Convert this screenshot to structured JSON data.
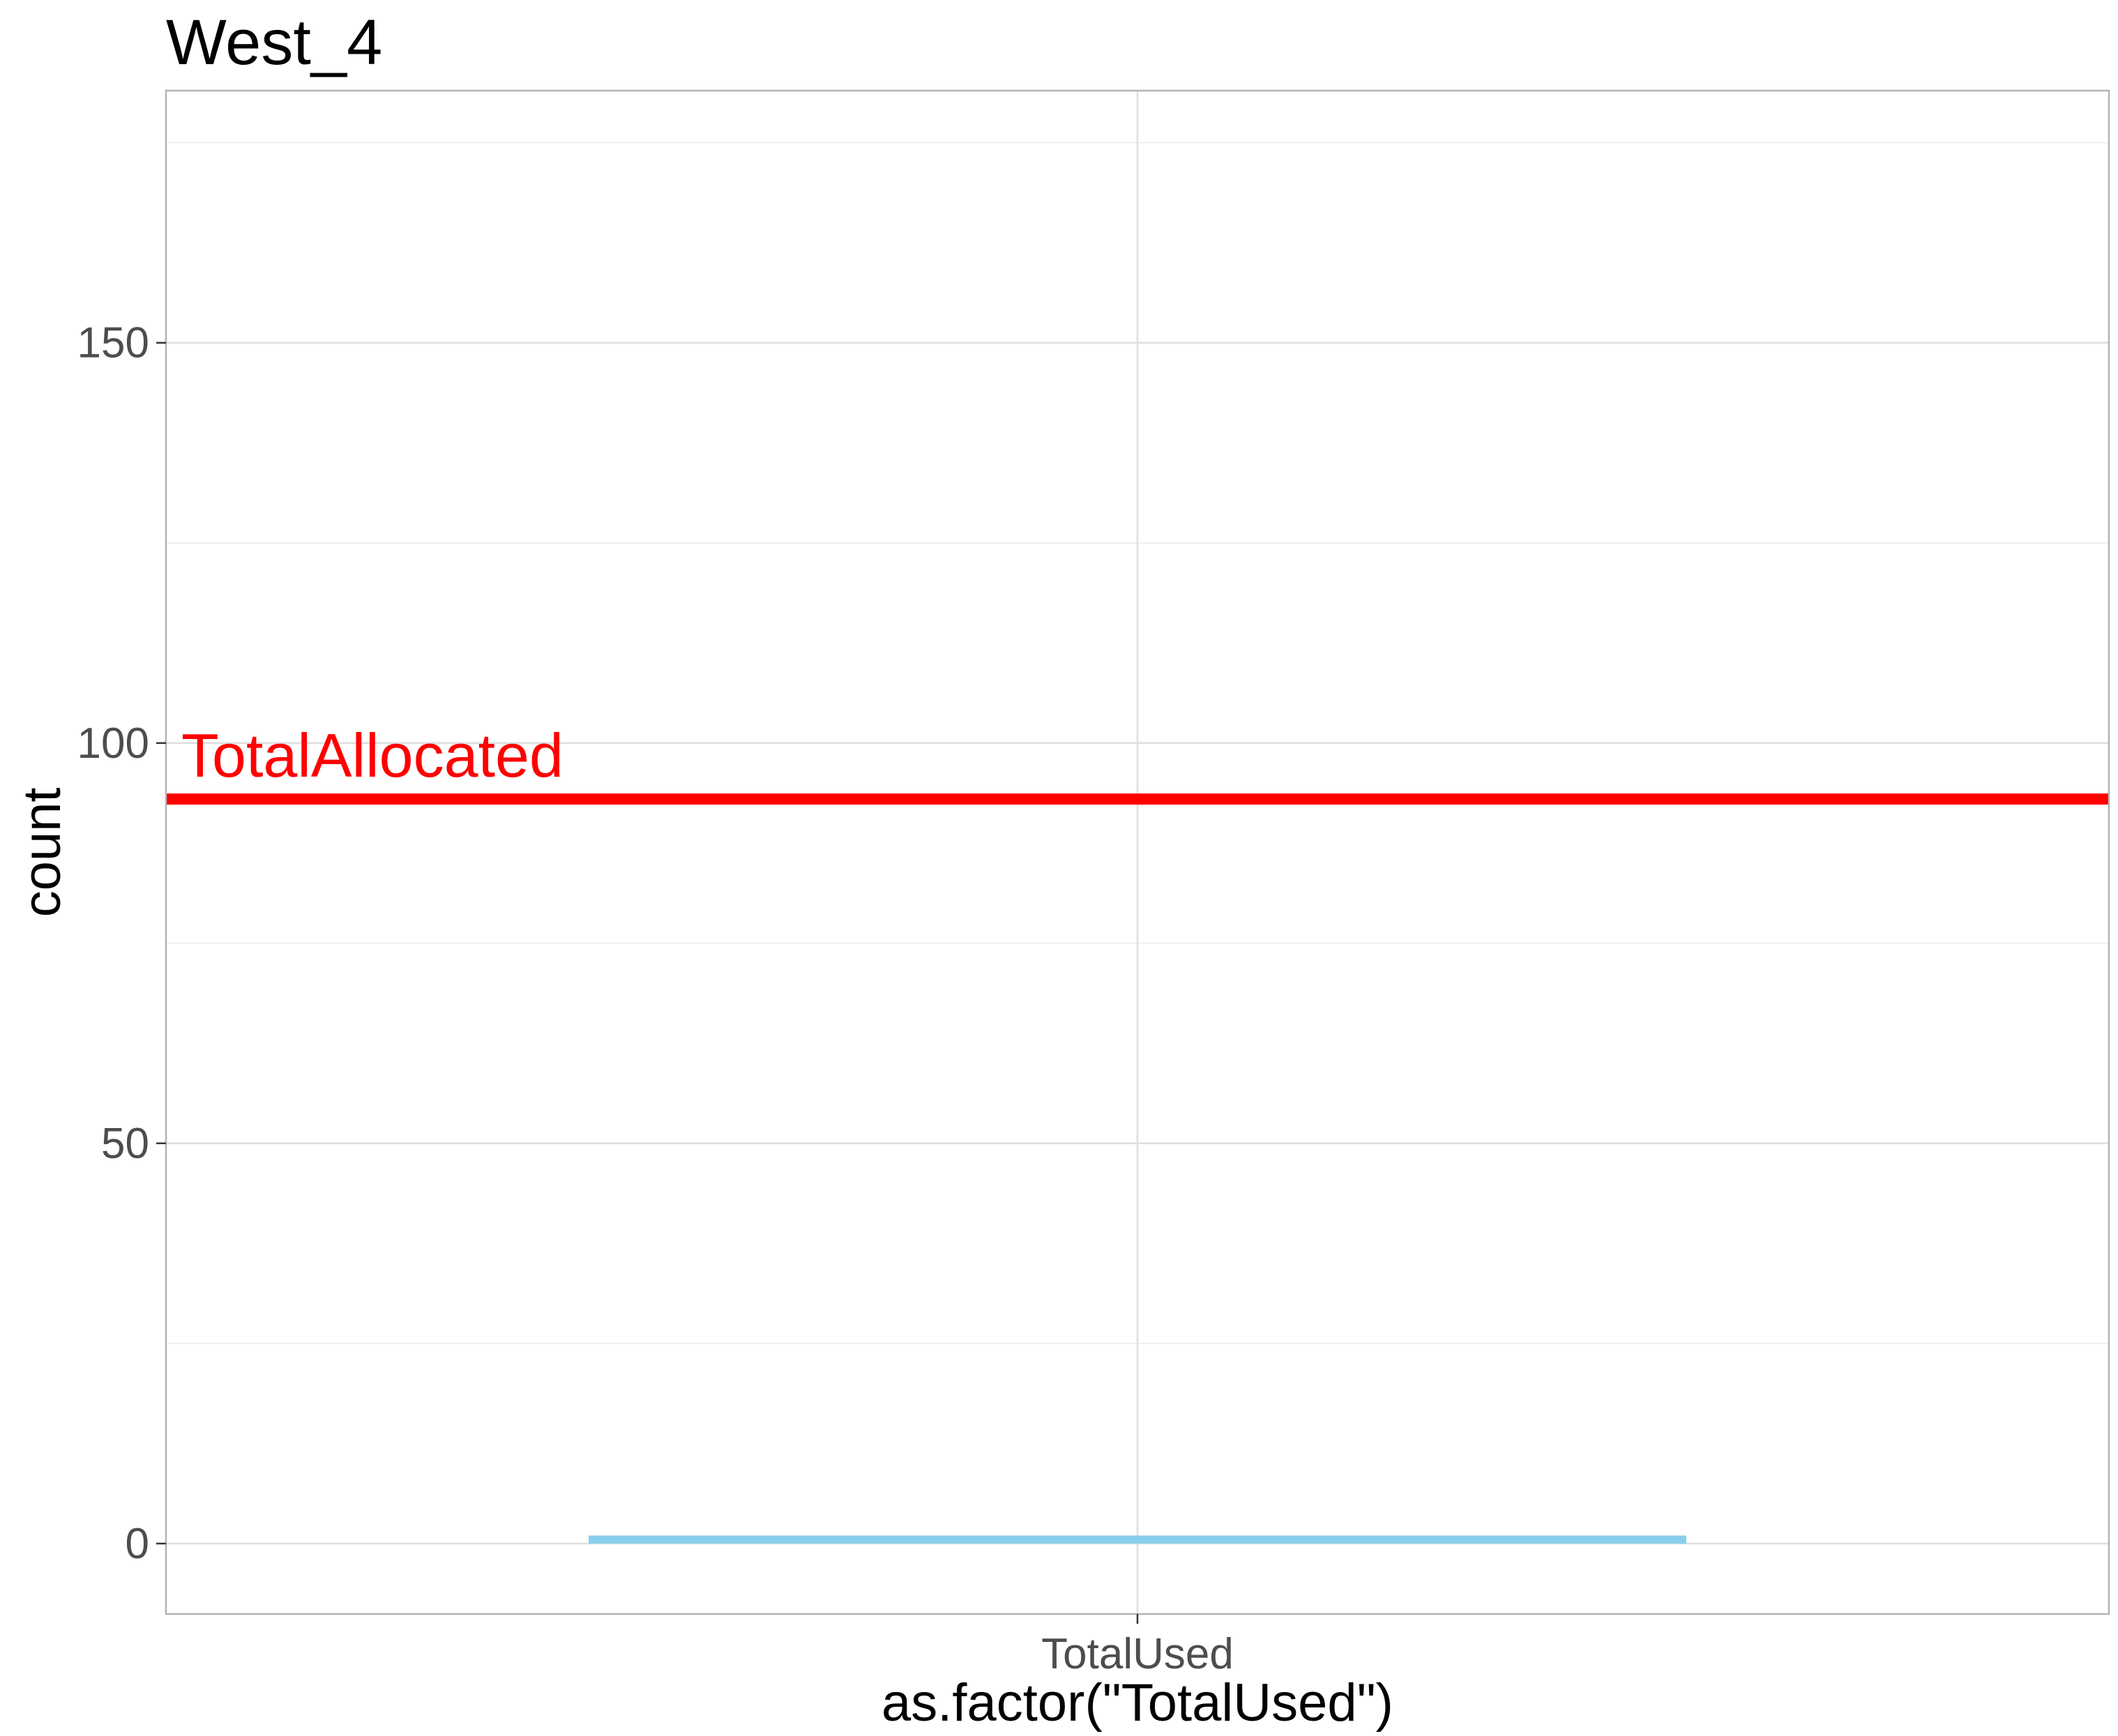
{
  "chart_data": {
    "type": "bar",
    "title": "West_4",
    "xlabel": "as.factor(\"TotalUsed\")",
    "ylabel": "count",
    "categories": [
      "TotalUsed"
    ],
    "series": [
      {
        "values": [
          1
        ],
        "color": "#87CEEB"
      }
    ],
    "ylim": [
      -8.8,
      181.5
    ],
    "yticks": [
      0,
      50,
      100,
      150
    ],
    "yticks_minor": [
      25,
      75,
      125,
      175
    ],
    "grid": true,
    "reference_lines": [
      {
        "label": "TotalAllocated",
        "value": 93,
        "color": "#FF0000"
      }
    ]
  }
}
